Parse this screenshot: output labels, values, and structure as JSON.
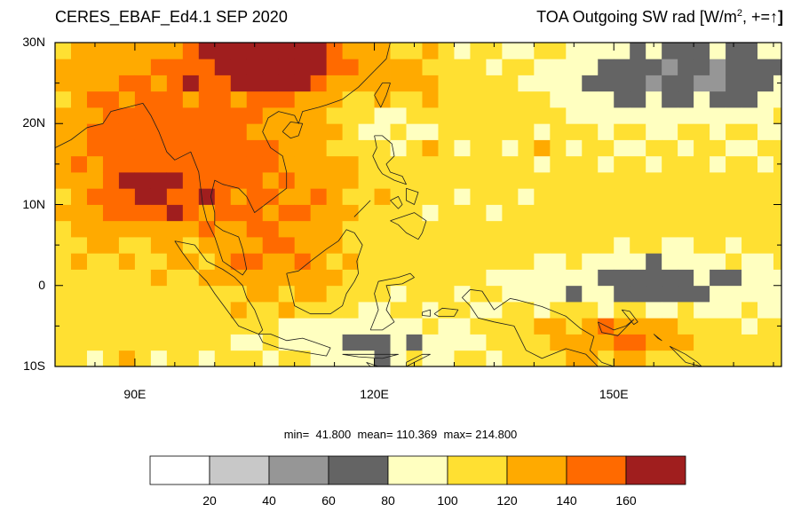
{
  "title_left": "CERES_EBAF_Ed4.1 SEP 2020",
  "title_right_prefix": "TOA Outgoing SW rad [W/m",
  "title_right_sup": "2",
  "title_right_suffix": ", +=",
  "title_arrow": "↑",
  "title_close": "]",
  "map": {
    "lon_range": [
      80,
      171
    ],
    "lat_range": [
      -10,
      30
    ],
    "y_ticks": [
      {
        "lat": 30,
        "label": "30N"
      },
      {
        "lat": 20,
        "label": "20N"
      },
      {
        "lat": 10,
        "label": "10N"
      },
      {
        "lat": 0,
        "label": "0"
      },
      {
        "lat": -10,
        "label": "10S"
      }
    ],
    "x_ticks": [
      {
        "lon": 90,
        "label": "90E"
      },
      {
        "lon": 120,
        "label": "120E"
      },
      {
        "lon": 150,
        "label": "150E"
      }
    ]
  },
  "stats": {
    "min_label": "min=",
    "min": "41.800",
    "mean_label": "mean=",
    "mean": "110.369",
    "max_label": "max=",
    "max": "214.800"
  },
  "colorbar": {
    "colors": [
      "#ffffff",
      "#c8c8c8",
      "#969696",
      "#646464",
      "#ffffc0",
      "#ffe032",
      "#ffaa00",
      "#ff6a00",
      "#a01e1e"
    ],
    "labels": [
      "20",
      "40",
      "60",
      "80",
      "100",
      "120",
      "140",
      "160"
    ]
  }
}
